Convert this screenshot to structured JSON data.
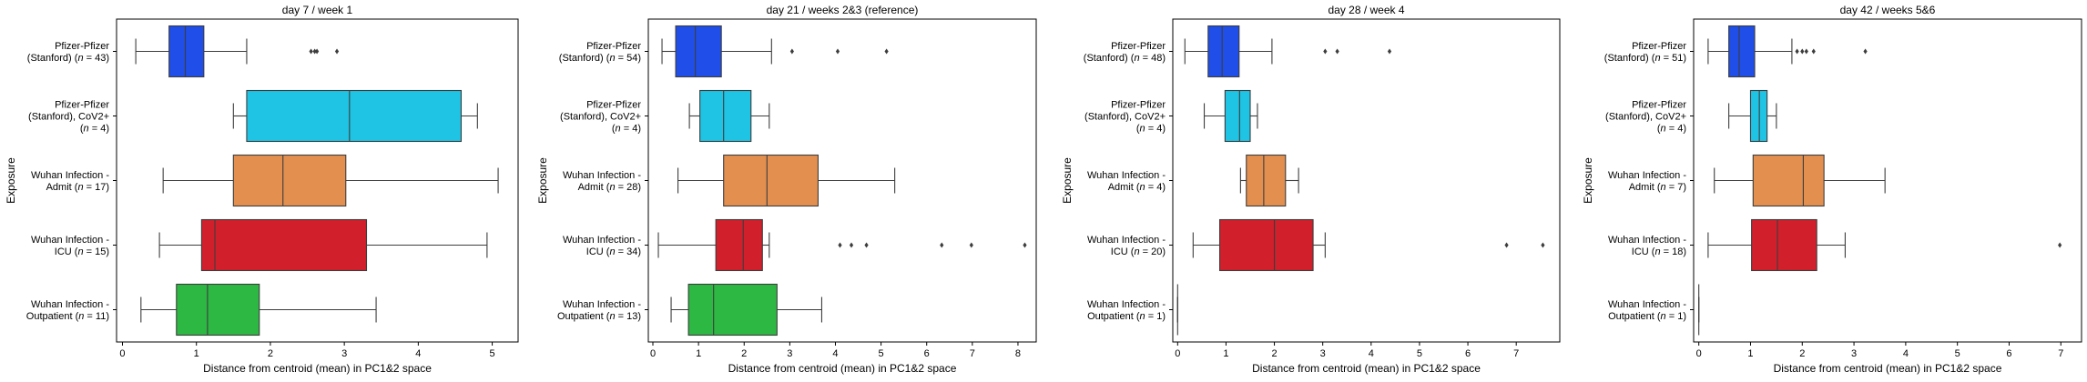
{
  "chart_data": [
    {
      "type": "box",
      "title": "day 7 / week 1",
      "xlabel": "Distance from centroid (mean) in PC1&2 space",
      "ylabel": "Exposure",
      "xlim": [
        -0.08,
        5.35
      ],
      "xticks": [
        0,
        1,
        2,
        3,
        4,
        5
      ],
      "groups": [
        {
          "label": [
            "Pfizer-Pfizer",
            "(Stanford) (n = 43)"
          ],
          "color": "#1f4ee8",
          "whisker_low": 0.18,
          "q1": 0.63,
          "median": 0.85,
          "q3": 1.1,
          "whisker_high": 1.68,
          "outliers": [
            2.55,
            2.6,
            2.63,
            2.9
          ]
        },
        {
          "label": [
            "Pfizer-Pfizer",
            "(Stanford), CoV2+",
            "(n = 4)"
          ],
          "color": "#1fc3e3",
          "whisker_low": 1.5,
          "q1": 1.68,
          "median": 3.07,
          "q3": 4.58,
          "whisker_high": 4.8,
          "outliers": []
        },
        {
          "label": [
            "Wuhan Infection -",
            "Admit (n = 17)"
          ],
          "color": "#e38f4f",
          "whisker_low": 0.55,
          "q1": 1.5,
          "median": 2.17,
          "q3": 3.02,
          "whisker_high": 5.08,
          "outliers": []
        },
        {
          "label": [
            "Wuhan Infection -",
            "ICU (n = 15)"
          ],
          "color": "#d11f2b",
          "whisker_low": 0.5,
          "q1": 1.07,
          "median": 1.25,
          "q3": 3.3,
          "whisker_high": 4.93,
          "outliers": []
        },
        {
          "label": [
            "Wuhan Infection -",
            "Outpatient (n = 11)"
          ],
          "color": "#2db743",
          "whisker_low": 0.25,
          "q1": 0.73,
          "median": 1.15,
          "q3": 1.85,
          "whisker_high": 3.43,
          "outliers": []
        }
      ]
    },
    {
      "type": "box",
      "title": "day 21 / weeks 2&3 (reference)",
      "xlabel": "Distance from centroid (mean) in PC1&2 space",
      "ylabel": "Exposure",
      "xlim": [
        -0.1,
        8.4
      ],
      "xticks": [
        0,
        1,
        2,
        3,
        4,
        5,
        6,
        7,
        8
      ],
      "groups": [
        {
          "label": [
            "Pfizer-Pfizer",
            "(Stanford) (n = 54)"
          ],
          "color": "#1f4ee8",
          "whisker_low": 0.2,
          "q1": 0.5,
          "median": 0.93,
          "q3": 1.5,
          "whisker_high": 2.6,
          "outliers": [
            3.05,
            4.05,
            5.12
          ]
        },
        {
          "label": [
            "Pfizer-Pfizer",
            "(Stanford), CoV2+",
            "(n = 4)"
          ],
          "color": "#1fc3e3",
          "whisker_low": 0.8,
          "q1": 1.03,
          "median": 1.55,
          "q3": 2.15,
          "whisker_high": 2.55,
          "outliers": []
        },
        {
          "label": [
            "Wuhan Infection -",
            "Admit (n = 28)"
          ],
          "color": "#e38f4f",
          "whisker_low": 0.55,
          "q1": 1.55,
          "median": 2.5,
          "q3": 3.62,
          "whisker_high": 5.3,
          "outliers": []
        },
        {
          "label": [
            "Wuhan Infection -",
            "ICU (n = 34)"
          ],
          "color": "#d11f2b",
          "whisker_low": 0.12,
          "q1": 1.38,
          "median": 1.98,
          "q3": 2.4,
          "whisker_high": 2.55,
          "outliers": [
            4.1,
            4.35,
            4.68,
            6.33,
            6.98,
            8.15
          ]
        },
        {
          "label": [
            "Wuhan Infection -",
            "Outpatient (n = 13)"
          ],
          "color": "#2db743",
          "whisker_low": 0.4,
          "q1": 0.78,
          "median": 1.33,
          "q3": 2.72,
          "whisker_high": 3.7,
          "outliers": []
        }
      ]
    },
    {
      "type": "box",
      "title": "day 28 / week 4",
      "xlabel": "Distance from centroid (mean) in PC1&2 space",
      "ylabel": "Exposure",
      "xlim": [
        -0.1,
        7.9
      ],
      "xticks": [
        0,
        1,
        2,
        3,
        4,
        5,
        6,
        7
      ],
      "groups": [
        {
          "label": [
            "Pfizer-Pfizer",
            "(Stanford) (n = 48)"
          ],
          "color": "#1f4ee8",
          "whisker_low": 0.15,
          "q1": 0.63,
          "median": 0.92,
          "q3": 1.27,
          "whisker_high": 1.95,
          "outliers": [
            3.05,
            3.3,
            4.38
          ]
        },
        {
          "label": [
            "Pfizer-Pfizer",
            "(Stanford), CoV2+",
            "(n = 4)"
          ],
          "color": "#1fc3e3",
          "whisker_low": 0.55,
          "q1": 0.98,
          "median": 1.28,
          "q3": 1.5,
          "whisker_high": 1.65,
          "outliers": []
        },
        {
          "label": [
            "Wuhan Infection -",
            "Admit (n = 4)"
          ],
          "color": "#e38f4f",
          "whisker_low": 1.3,
          "q1": 1.42,
          "median": 1.78,
          "q3": 2.23,
          "whisker_high": 2.5,
          "outliers": []
        },
        {
          "label": [
            "Wuhan Infection -",
            "ICU (n = 20)"
          ],
          "color": "#d11f2b",
          "whisker_low": 0.32,
          "q1": 0.87,
          "median": 2.0,
          "q3": 2.8,
          "whisker_high": 3.05,
          "outliers": [
            6.8,
            7.55
          ]
        },
        {
          "label": [
            "Wuhan Infection -",
            "Outpatient (n = 1)"
          ],
          "color": "#2db743",
          "whisker_low": 0.0,
          "q1": 0.0,
          "median": 0.0,
          "q3": 0.0,
          "whisker_high": 0.0,
          "outliers": []
        }
      ]
    },
    {
      "type": "box",
      "title": "day 42 / weeks 5&6",
      "xlabel": "Distance from centroid (mean) in PC1&2 space",
      "ylabel": "Exposure",
      "xlim": [
        -0.1,
        7.4
      ],
      "xticks": [
        0,
        1,
        2,
        3,
        4,
        5,
        6,
        7
      ],
      "groups": [
        {
          "label": [
            "Pfizer-Pfizer",
            "(Stanford) (n = 51)"
          ],
          "color": "#1f4ee8",
          "whisker_low": 0.18,
          "q1": 0.58,
          "median": 0.78,
          "q3": 1.08,
          "whisker_high": 1.8,
          "outliers": [
            1.9,
            2.0,
            2.08,
            2.22,
            3.22
          ]
        },
        {
          "label": [
            "Pfizer-Pfizer",
            "(Stanford), CoV2+",
            "(n = 4)"
          ],
          "color": "#1fc3e3",
          "whisker_low": 0.58,
          "q1": 1.0,
          "median": 1.17,
          "q3": 1.32,
          "whisker_high": 1.5,
          "outliers": []
        },
        {
          "label": [
            "Wuhan Infection -",
            "Admit (n = 7)"
          ],
          "color": "#e38f4f",
          "whisker_low": 0.3,
          "q1": 1.05,
          "median": 2.02,
          "q3": 2.42,
          "whisker_high": 3.6,
          "outliers": []
        },
        {
          "label": [
            "Wuhan Infection -",
            "ICU (n = 18)"
          ],
          "color": "#d11f2b",
          "whisker_low": 0.18,
          "q1": 1.02,
          "median": 1.52,
          "q3": 2.28,
          "whisker_high": 2.83,
          "outliers": [
            6.98
          ]
        },
        {
          "label": [
            "Wuhan Infection -",
            "Outpatient (n = 1)"
          ],
          "color": "#2db743",
          "whisker_low": 0.0,
          "q1": 0.0,
          "median": 0.0,
          "q3": 0.0,
          "whisker_high": 0.0,
          "outliers": []
        }
      ]
    }
  ]
}
